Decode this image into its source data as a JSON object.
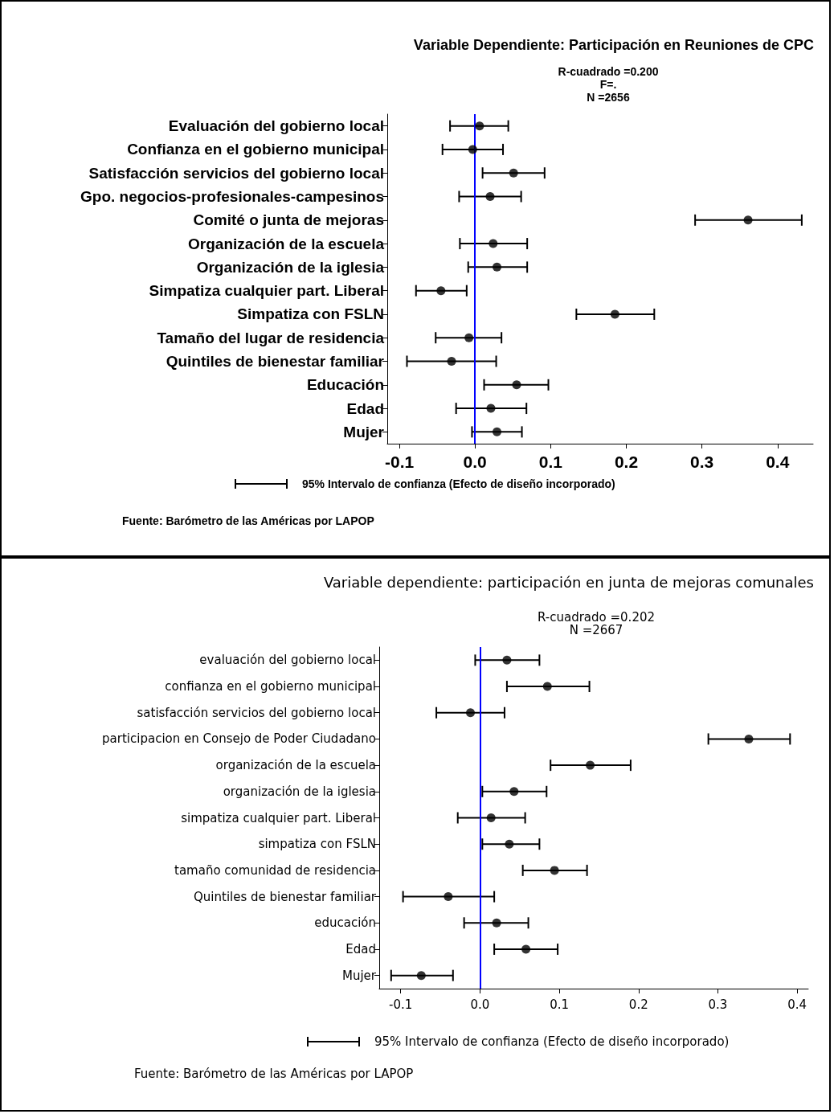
{
  "chart_data": [
    {
      "type": "scatter",
      "orientation": "horizontal",
      "title": "Variable Dependiente: Participación en Reuniones de CPC",
      "categories": [
        "Evaluación del gobierno local",
        "Confianza en el gobierno municipal",
        "Satisfacción servicios del gobierno local",
        "Gpo. negocios-profesionales-campesinos",
        "Comité o junta de mejoras",
        "Organización de la escuela",
        "Organización de la iglesia",
        "Simpatiza cualquier part. Liberal",
        "Simpatiza con FSLN",
        "Tamaño del lugar de residencia",
        "Quintiles de bienestar familiar",
        "Educación",
        "Edad",
        "Mujer"
      ],
      "values": [
        0.006,
        -0.003,
        0.051,
        0.02,
        0.361,
        0.024,
        0.029,
        -0.045,
        0.185,
        -0.008,
        -0.031,
        0.055,
        0.021,
        0.029
      ],
      "errors": [
        [
          -0.033,
          0.044
        ],
        [
          -0.043,
          0.037
        ],
        [
          0.01,
          0.092
        ],
        [
          -0.021,
          0.061
        ],
        [
          0.291,
          0.432
        ],
        [
          -0.02,
          0.069
        ],
        [
          -0.009,
          0.069
        ],
        [
          -0.078,
          -0.011
        ],
        [
          0.134,
          0.237
        ],
        [
          -0.052,
          0.035
        ],
        [
          -0.09,
          0.028
        ],
        [
          0.012,
          0.097
        ],
        [
          -0.025,
          0.068
        ],
        [
          -0.004,
          0.062
        ]
      ],
      "color": "#000000",
      "marker": "circle",
      "grid": false,
      "xlim": [
        -0.116,
        0.447
      ],
      "xticks": [
        -0.1,
        {
          "value": 0,
          "label": "0.0"
        },
        0.1,
        0.2,
        0.3,
        0.4
      ],
      "ref_lines": [
        {
          "axis": "x",
          "value": 0,
          "color": "#0000ff"
        }
      ],
      "annotations": [
        "R-cuadrado =0.200",
        "F=.",
        "N =2656",
        "95% Intervalo de confianza (Efecto de diseño incorporado)",
        "Fuente: Barómetro de las Américas por LAPOP"
      ]
    },
    {
      "type": "scatter",
      "orientation": "horizontal",
      "title": "Variable dependiente: participación en junta de mejoras comunales",
      "categories": [
        "evaluación del gobierno local",
        "confianza en el gobierno municipal",
        "satisfacción servicios del gobierno local",
        "participacion en Consejo de Poder Ciudadano",
        "organización de la escuela",
        "organización de la iglesia",
        "simpatiza cualquier part. Liberal",
        "simpatiza con FSLN",
        "tamaño comunidad de residencia",
        "Quintiles de bienestar familiar",
        "educación",
        "Edad",
        "Mujer"
      ],
      "values": [
        0.034,
        0.085,
        -0.012,
        0.339,
        0.139,
        0.043,
        0.014,
        0.037,
        0.094,
        -0.04,
        0.021,
        0.058,
        -0.074
      ],
      "errors": [
        [
          -0.006,
          0.075
        ],
        [
          0.034,
          0.138
        ],
        [
          -0.055,
          0.031
        ],
        [
          0.288,
          0.391
        ],
        [
          0.089,
          0.19
        ],
        [
          0.003,
          0.084
        ],
        [
          -0.028,
          0.057
        ],
        [
          0.003,
          0.075
        ],
        [
          0.054,
          0.135
        ],
        [
          -0.097,
          0.018
        ],
        [
          -0.02,
          0.061
        ],
        [
          0.018,
          0.098
        ],
        [
          -0.112,
          -0.034
        ]
      ],
      "color": "#000000",
      "marker": "circle",
      "grid": false,
      "xlim": [
        -0.127,
        0.414
      ],
      "xticks": [
        -0.1,
        {
          "value": 0,
          "label": "0.0"
        },
        0.1,
        0.2,
        0.3,
        0.4
      ],
      "ref_lines": [
        {
          "axis": "x",
          "value": 0,
          "color": "#0000ff"
        }
      ],
      "annotations": [
        "R-cuadrado =0.202",
        "N =2667",
        "95% Intervalo de confianza (Efecto de diseño incorporado)",
        "Fuente: Barómetro de las Américas por LAPOP"
      ]
    }
  ]
}
